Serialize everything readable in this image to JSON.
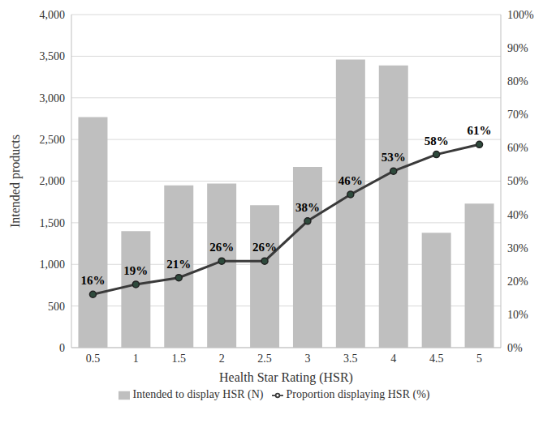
{
  "chart_data": {
    "type": "bar",
    "x_label": "Health Star Rating (HSR)",
    "y_label": "Intended products",
    "categories": [
      "0.5",
      "1",
      "1.5",
      "2",
      "2.5",
      "3",
      "3.5",
      "4",
      "4.5",
      "5"
    ],
    "series": [
      {
        "name": "Intended to display HSR (N)",
        "type": "bar",
        "color": "#bfbfbf",
        "values": [
          2770,
          1400,
          1950,
          1970,
          1710,
          2170,
          3460,
          3390,
          1380,
          1730
        ]
      },
      {
        "name": "Proportion displaying HSR (%)",
        "type": "line",
        "axis": "y2",
        "color": "#3a3a3a",
        "marker": "circle",
        "line_style": "solid",
        "data_labels": true,
        "values": [
          16,
          19,
          21,
          26,
          26,
          38,
          46,
          53,
          58,
          61
        ],
        "value_labels": [
          "16%",
          "19%",
          "21%",
          "26%",
          "26%",
          "38%",
          "46%",
          "53%",
          "58%",
          "61%"
        ]
      }
    ],
    "ylim": [
      0,
      4000
    ],
    "yticks": [
      0,
      500,
      {
        "value": 1000,
        "label": "1,000"
      },
      {
        "value": 1500,
        "label": "1,500"
      },
      {
        "value": 2000,
        "label": "2,000"
      },
      {
        "value": 2500,
        "label": "2,500"
      },
      {
        "value": 3000,
        "label": "3,000"
      },
      {
        "value": 3500,
        "label": "3,500"
      },
      {
        "value": 4000,
        "label": "4,000"
      }
    ],
    "y2lim": [
      0,
      100
    ],
    "y2ticks": [
      {
        "value": 0,
        "label": "0%"
      },
      {
        "value": 10,
        "label": "10%"
      },
      {
        "value": 20,
        "label": "20%"
      },
      {
        "value": 30,
        "label": "30%"
      },
      {
        "value": 40,
        "label": "40%"
      },
      {
        "value": 50,
        "label": "50%"
      },
      {
        "value": 60,
        "label": "60%"
      },
      {
        "value": 70,
        "label": "70%"
      },
      {
        "value": 80,
        "label": "80%"
      },
      {
        "value": 90,
        "label": "90%"
      },
      {
        "value": 100,
        "label": "100%"
      }
    ],
    "grid": true,
    "legend": "bottom"
  }
}
